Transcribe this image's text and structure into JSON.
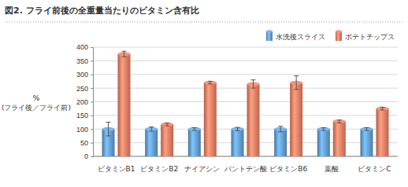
{
  "chart_data": {
    "type": "bar",
    "title": "図2. フライ前後の全重量当たりのビタミン含有比",
    "y_label": [
      "%",
      "(フライ後／フライ前)"
    ],
    "categories": [
      "ビタミンB1",
      "ビタミンB2",
      "ナイアシン",
      "パントテン酸",
      "ビタミンB6",
      "葉酸",
      "ビタミンC"
    ],
    "series": [
      {
        "name": "水洗後スライス",
        "color": "#5b8fbd",
        "values": [
          100,
          100,
          100,
          100,
          100,
          100,
          100
        ],
        "errors": [
          25,
          8,
          5,
          6,
          10,
          5,
          5
        ]
      },
      {
        "name": "ポテトチップス",
        "color": "#d9735c",
        "values": [
          375,
          117,
          270,
          265,
          270,
          128,
          175
        ],
        "errors": [
          10,
          5,
          5,
          15,
          25,
          5,
          5
        ]
      }
    ],
    "ylim": [
      0,
      400
    ],
    "yticks": [
      0,
      50,
      100,
      150,
      200,
      250,
      300,
      350,
      400
    ],
    "grid": true,
    "legend": "top-right"
  }
}
